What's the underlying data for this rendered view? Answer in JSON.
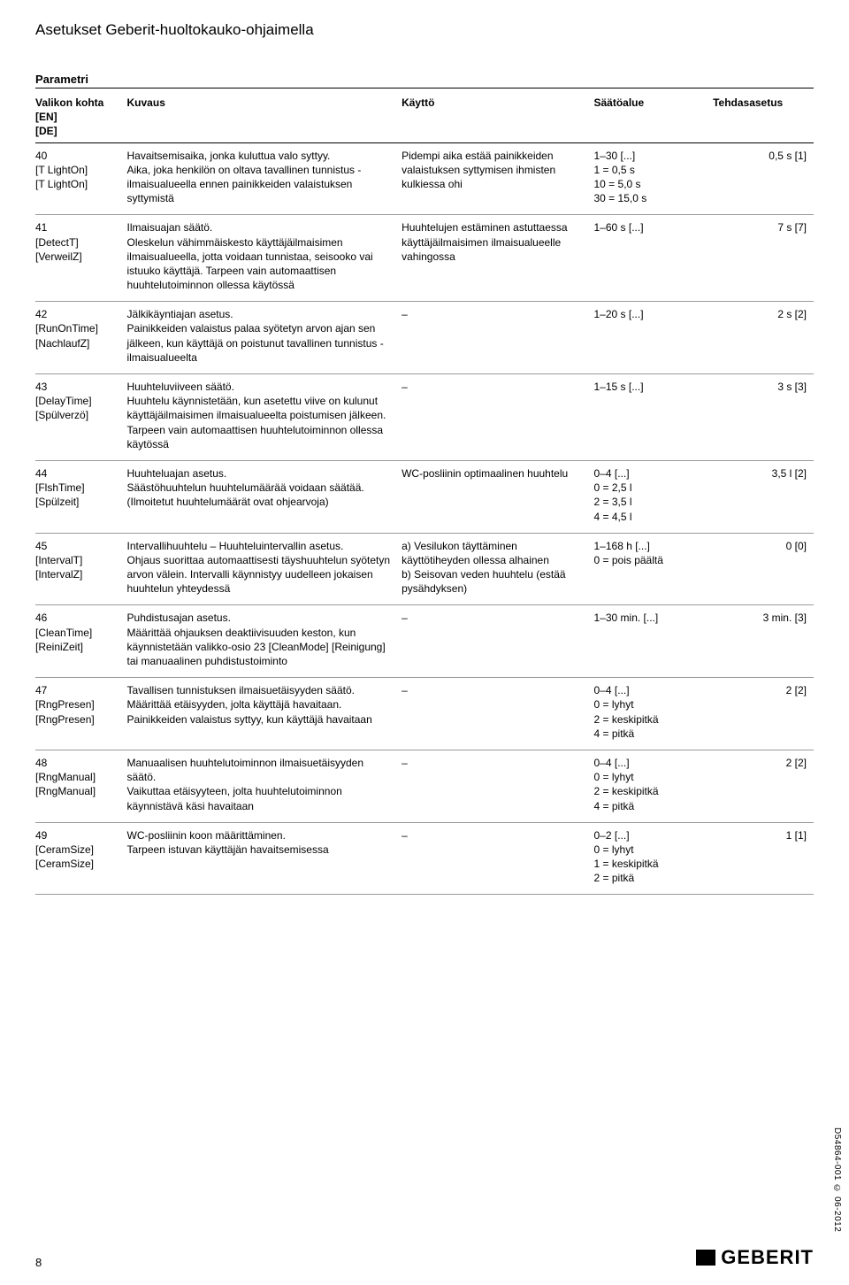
{
  "page": {
    "title": "Asetukset Geberit-huoltokauko-ohjaimella",
    "section": "Parametri",
    "footer_page": "8",
    "side_label": "D54864-001 © 06-2012",
    "logo_text": "GEBERIT"
  },
  "columns": {
    "menu": "Valikon kohta\n[EN]\n[DE]",
    "desc": "Kuvaus",
    "use": "Käyttö",
    "range": "Säätöalue",
    "default": "Tehdasasetus"
  },
  "rows": [
    {
      "menu": "40\n[T LightOn]\n[T LightOn]",
      "desc": "Havaitsemisaika, jonka kuluttua valo syttyy.\nAika, joka henkilön on oltava tavallinen tunnistus -ilmaisualueella ennen painikkeiden valaistuksen syttymistä",
      "use": "Pidempi aika estää painikkeiden valaistuksen syttymisen ihmisten kulkiessa ohi",
      "range": "1–30 [...]\n1 = 0,5 s\n10 = 5,0 s\n30 = 15,0 s",
      "default": "0,5 s [1]"
    },
    {
      "menu": "41\n[DetectT]\n[VerweilZ]",
      "desc": "Ilmaisuajan säätö.\nOleskelun vähimmäiskesto käyttäjäilmaisimen ilmaisualueella, jotta voidaan tunnistaa, seisooko vai istuuko käyttäjä. Tarpeen vain automaattisen huuhtelutoiminnon ollessa käytössä",
      "use": "Huuhtelujen estäminen astuttaessa käyttäjäilmaisimen ilmaisualueelle vahingossa",
      "range": "1–60 s [...]",
      "default": "7 s [7]"
    },
    {
      "menu": "42\n[RunOnTime]\n[NachlaufZ]",
      "desc": "Jälkikäyntiajan asetus.\nPainikkeiden valaistus palaa syötetyn arvon ajan sen jälkeen, kun käyttäjä on poistunut tavallinen tunnistus -ilmaisualueelta",
      "use": "–",
      "range": "1–20 s [...]",
      "default": "2 s [2]"
    },
    {
      "menu": "43\n[DelayTime]\n[Spülverzö]",
      "desc": "Huuhteluviiveen säätö.\nHuuhtelu käynnistetään, kun asetettu viive on kulunut käyttäjäilmaisimen ilmaisualueelta poistumisen jälkeen. Tarpeen vain automaattisen huuhtelutoiminnon ollessa käytössä",
      "use": "–",
      "range": "1–15 s [...]",
      "default": "3 s [3]"
    },
    {
      "menu": "44\n[FlshTime]\n[Spülzeit]",
      "desc": "Huuhteluajan asetus.\nSäästöhuuhtelun huuhtelumäärää voidaan säätää. (Ilmoitetut huuhtelumäärät ovat ohjearvoja)",
      "use": "WC-posliinin optimaalinen huuhtelu",
      "range": "0–4 [...]\n0 = 2,5 l\n2 = 3,5 l\n4 = 4,5 l",
      "default": "3,5 l [2]"
    },
    {
      "menu": "45\n[IntervalT]\n[IntervalZ]",
      "desc": "Intervallihuuhtelu – Huuhteluintervallin asetus.\nOhjaus suorittaa automaattisesti täyshuuhtelun syötetyn arvon välein. Intervalli käynnistyy uudelleen jokaisen huuhtelun yhteydessä",
      "use": "a) Vesilukon täyttäminen käyttötiheyden ollessa alhainen\nb) Seisovan veden huuhtelu (estää pysähdyksen)",
      "range": "1–168 h [...]\n0 = pois päältä",
      "default": "0 [0]"
    },
    {
      "menu": "46\n[CleanTime]\n[ReiniZeit]",
      "desc": "Puhdistusajan asetus.\nMäärittää ohjauksen deaktiivisuuden keston, kun käynnistetään valikko-osio 23 [CleanMode] [Reinigung] tai manuaalinen puhdistustoiminto",
      "use": "–",
      "range": "1–30 min. [...]",
      "default": "3 min. [3]"
    },
    {
      "menu": "47\n[RngPresen]\n[RngPresen]",
      "desc": "Tavallisen tunnistuksen ilmaisuetäisyyden säätö.\nMäärittää etäisyyden, jolta käyttäjä havaitaan. Painikkeiden valaistus syttyy, kun käyttäjä havaitaan",
      "use": "–",
      "range": "0–4 [...]\n0 = lyhyt\n2 = keskipitkä\n4 = pitkä",
      "default": "2 [2]"
    },
    {
      "menu": "48\n[RngManual]\n[RngManual]",
      "desc": "Manuaalisen huuhtelutoiminnon ilmaisuetäisyyden säätö.\nVaikuttaa etäisyyteen, jolta huuhtelutoiminnon käynnistävä käsi havaitaan",
      "use": "–",
      "range": "0–4 [...]\n0 = lyhyt\n2 = keskipitkä\n4 = pitkä",
      "default": "2 [2]"
    },
    {
      "menu": "49\n[CeramSize]\n[CeramSize]",
      "desc": "WC-posliinin koon määrittäminen.\nTarpeen istuvan käyttäjän havaitsemisessa",
      "use": "–",
      "range": "0–2 [...]\n0 = lyhyt\n1 = keskipitkä\n2 = pitkä",
      "default": "1 [1]"
    }
  ]
}
